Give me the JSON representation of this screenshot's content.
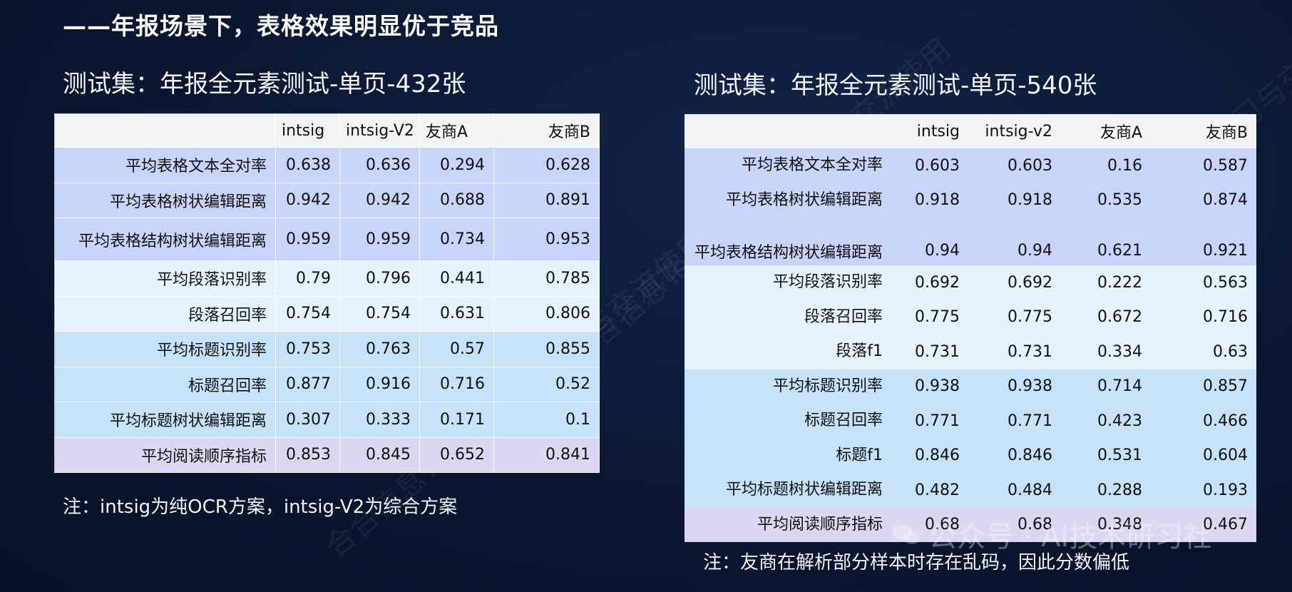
{
  "headline": "——年报场景下，表格效果明显优于竞品",
  "left": {
    "subtitle": "测试集：年报全元素测试-单页-432张",
    "columns": [
      "",
      "intsig",
      "intsig-V2",
      "友商A",
      "友商B"
    ],
    "rows": [
      {
        "label": "平均表格文本全对率",
        "group": "table",
        "values": [
          "0.638",
          "0.636",
          "0.294",
          "0.628"
        ]
      },
      {
        "label": "平均表格树状编辑距离",
        "group": "table",
        "values": [
          "0.942",
          "0.942",
          "0.688",
          "0.891"
        ]
      },
      {
        "label": "平均表格结构树状编辑距离",
        "group": "table",
        "values": [
          "0.959",
          "0.959",
          "0.734",
          "0.953"
        ]
      },
      {
        "label": "平均段落识别率",
        "group": "para",
        "values": [
          "0.79",
          "0.796",
          "0.441",
          "0.785"
        ]
      },
      {
        "label": "段落召回率",
        "group": "para",
        "values": [
          "0.754",
          "0.754",
          "0.631",
          "0.806"
        ]
      },
      {
        "label": "平均标题识别率",
        "group": "title",
        "values": [
          "0.753",
          "0.763",
          "0.57",
          "0.855"
        ]
      },
      {
        "label": "标题召回率",
        "group": "title",
        "values": [
          "0.877",
          "0.916",
          "0.716",
          "0.52"
        ]
      },
      {
        "label": "平均标题树状编辑距离",
        "group": "title",
        "values": [
          "0.307",
          "0.333",
          "0.171",
          "0.1"
        ]
      },
      {
        "label": "平均阅读顺序指标",
        "group": "read",
        "values": [
          "0.853",
          "0.845",
          "0.652",
          "0.841"
        ]
      }
    ],
    "note": "注：intsig为纯OCR方案，intsig-V2为综合方案"
  },
  "right": {
    "subtitle": "测试集：年报全元素测试-单页-540张",
    "columns": [
      "",
      "intsig",
      "intsig-v2",
      "友商A",
      "友商B"
    ],
    "rows": [
      {
        "label": "平均表格文本全对率",
        "group": "table",
        "values": [
          "0.603",
          "0.603",
          "0.16",
          "0.587"
        ]
      },
      {
        "label": "平均表格树状编辑距离",
        "group": "table",
        "values": [
          "0.918",
          "0.918",
          "0.535",
          "0.874"
        ]
      },
      {
        "label": "平均表格结构树状编辑距离",
        "group": "table",
        "values": [
          "0.94",
          "0.94",
          "0.621",
          "0.921"
        ]
      },
      {
        "label": "平均段落识别率",
        "group": "para",
        "values": [
          "0.692",
          "0.692",
          "0.222",
          "0.563"
        ]
      },
      {
        "label": "段落召回率",
        "group": "para",
        "values": [
          "0.775",
          "0.775",
          "0.672",
          "0.716"
        ]
      },
      {
        "label": "段落f1",
        "group": "para",
        "values": [
          "0.731",
          "0.731",
          "0.334",
          "0.63"
        ]
      },
      {
        "label": "平均标题识别率",
        "group": "title",
        "values": [
          "0.938",
          "0.938",
          "0.714",
          "0.857"
        ]
      },
      {
        "label": "标题召回率",
        "group": "title",
        "values": [
          "0.771",
          "0.771",
          "0.423",
          "0.466"
        ]
      },
      {
        "label": "标题f1",
        "group": "title",
        "values": [
          "0.846",
          "0.846",
          "0.531",
          "0.604"
        ]
      },
      {
        "label": "平均标题树状编辑距离",
        "group": "title",
        "values": [
          "0.482",
          "0.484",
          "0.288",
          "0.193"
        ]
      },
      {
        "label": "平均阅读顺序指标",
        "group": "read",
        "values": [
          "0.68",
          "0.68",
          "0.348",
          "0.467"
        ]
      }
    ],
    "note": "注：友商在解析部分样本时存在乱码，因此分数偏低"
  },
  "wechat_label": "公众号 · AI技术研习社",
  "watermark_text": "合合信息TextIn-仅供学习与交流使用",
  "group_colors": {
    "table": "#c9d4fb",
    "para": "#e4f3fc",
    "title": "#c6e2f8",
    "read": "#dcd6f1"
  }
}
